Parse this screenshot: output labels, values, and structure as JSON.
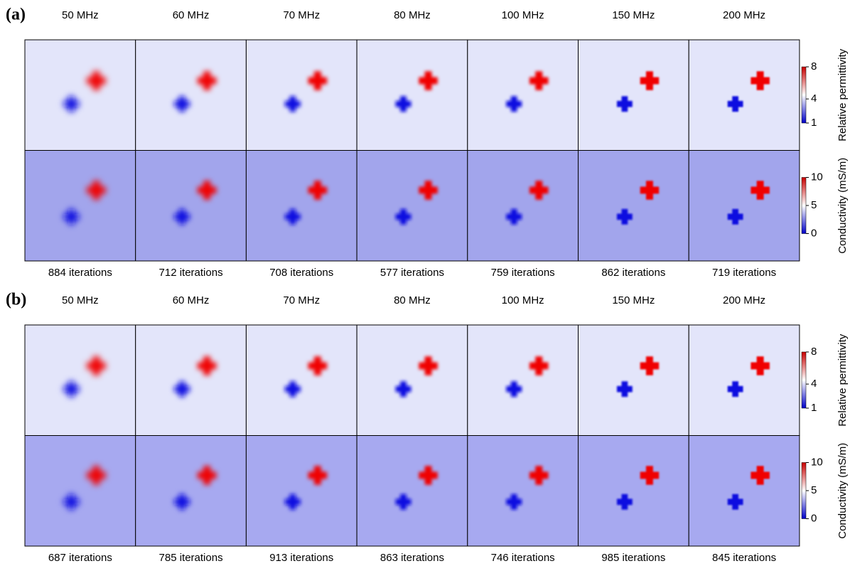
{
  "panels": [
    {
      "label": "(a)",
      "frequencies": [
        "50 MHz",
        "60 MHz",
        "70 MHz",
        "80 MHz",
        "100 MHz",
        "150 MHz",
        "200 MHz"
      ],
      "iterations": [
        "884 iterations",
        "712 iterations",
        "708 iterations",
        "577 iterations",
        "759 iterations",
        "862 iterations",
        "719 iterations"
      ]
    },
    {
      "label": "(b)",
      "frequencies": [
        "50 MHz",
        "60 MHz",
        "70 MHz",
        "80 MHz",
        "100 MHz",
        "150 MHz",
        "200 MHz"
      ],
      "iterations": [
        "687 iterations",
        "785 iterations",
        "913 iterations",
        "863 iterations",
        "746 iterations",
        "985 iterations",
        "845 iterations"
      ]
    }
  ],
  "colorbars": [
    {
      "label": "Relative permittivity",
      "lim": [
        1,
        8
      ],
      "ticks": [
        1,
        4,
        8
      ]
    },
    {
      "label": "Conductivity (mS/m)",
      "lim": [
        0,
        10
      ],
      "ticks": [
        0,
        5,
        10
      ]
    }
  ]
}
